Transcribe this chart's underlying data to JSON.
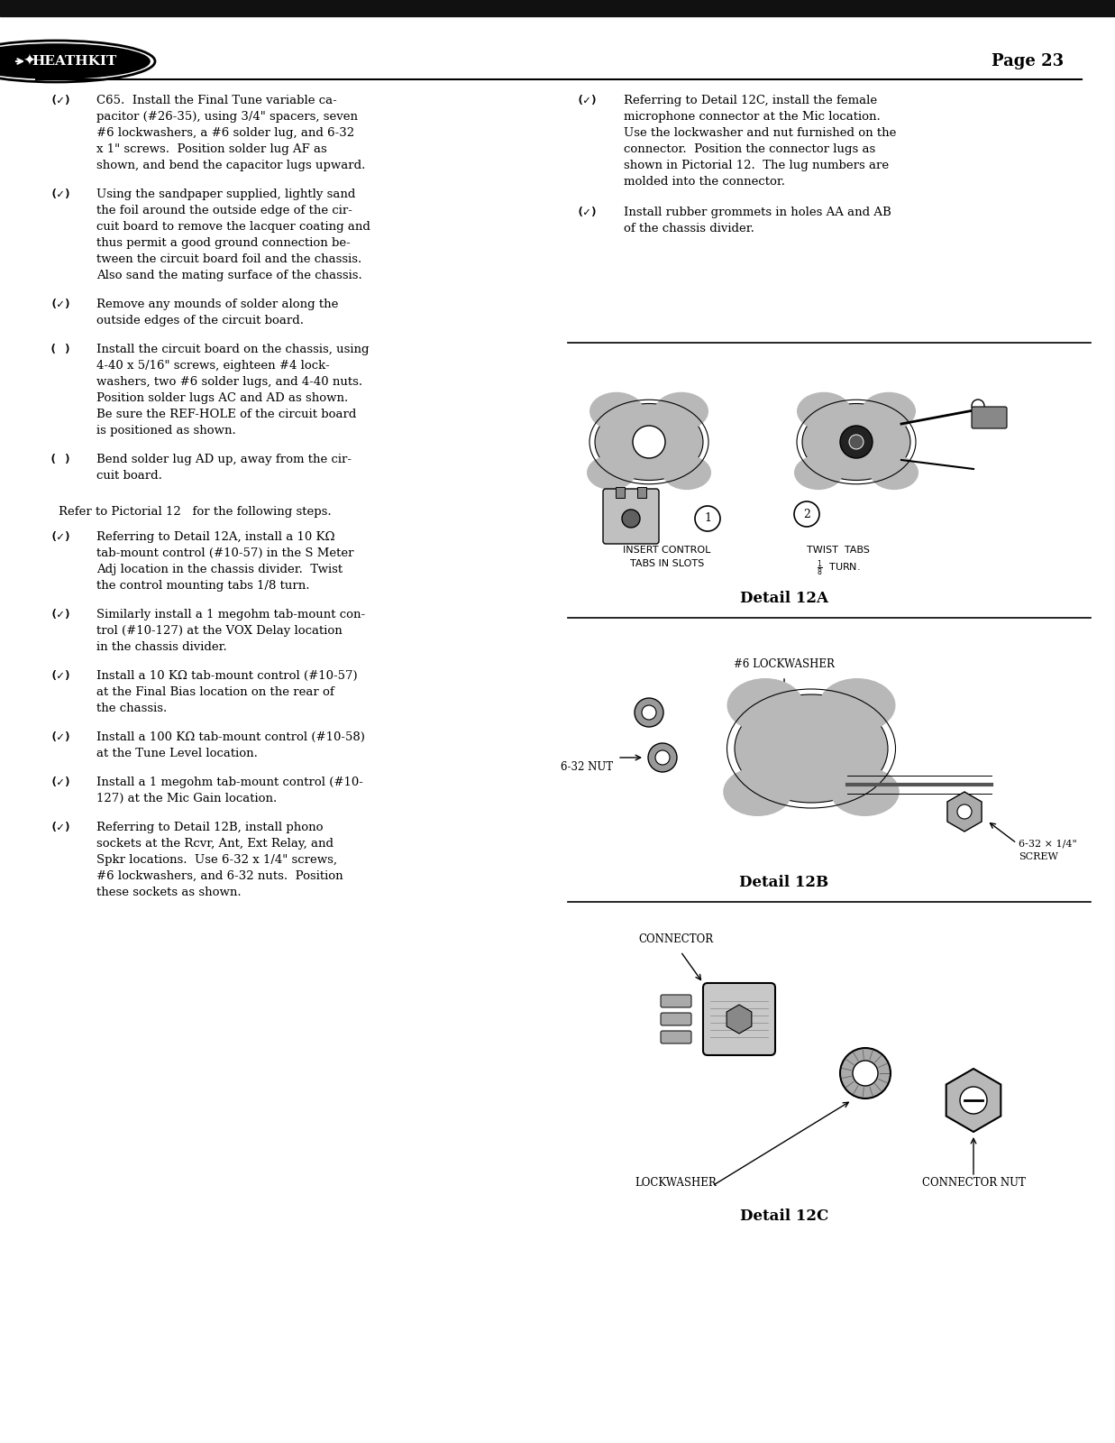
{
  "page_num": "Page 23",
  "bg_color": "#ffffff",
  "text_color": "#000000",
  "header_bar_color": "#111111",
  "logo_text": "HEATHKIT",
  "col1_items": [
    {
      "check": "(✓)",
      "text": "C65.  Install the Final Tune variable ca-\npacitor (#26-35), using 3/4\" spacers, seven\n#6 lockwashers, a #6 solder lug, and 6-32\nx 1\" screws.  Position solder lug AF as\nshown, and bend the capacitor lugs upward."
    },
    {
      "check": "(✓)",
      "text": "Using the sandpaper supplied, lightly sand\nthe foil around the outside edge of the cir-\ncuit board to remove the lacquer coating and\nthus permit a good ground connection be-\ntween the circuit board foil and the chassis.\nAlso sand the mating surface of the chassis."
    },
    {
      "check": "(✓)",
      "text": "Remove any mounds of solder along the\noutside edges of the circuit board."
    },
    {
      "check": "( )",
      "text": "Install the circuit board on the chassis, using\n4-40 x 5/16\" screws, eighteen #4 lock-\nwashers, two #6 solder lugs, and 4-40 nuts.\nPosition solder lugs AC and AD as shown.\nBe sure the REF-HOLE of the circuit board\nis positioned as shown."
    },
    {
      "check": "( )",
      "text": "Bend solder lug AD up, away from the cir-\ncuit board."
    }
  ],
  "refer_text": "Refer to Pictorial 12   for the following steps.",
  "col1_items2": [
    {
      "check": "(✓)",
      "text": "Referring to Detail 12A, install a 10 KΩ\ntab-mount control (#10-57) in the S Meter\nAdj location in the chassis divider.  Twist\nthe control mounting tabs 1/8 turn."
    },
    {
      "check": "(✓)",
      "text": "Similarly install a 1 megohm tab-mount con-\ntrol (#10-127) at the VOX Delay location\nin the chassis divider."
    },
    {
      "check": "(✓)",
      "text": "Install a 10 KΩ tab-mount control (#10-57)\nat the Final Bias location on the rear of\nthe chassis."
    },
    {
      "check": "(✓)",
      "text": "Install a 100 KΩ tab-mount control (#10-58)\nat the Tune Level location."
    },
    {
      "check": "(✓)",
      "text": "Install a 1 megohm tab-mount control (#10-\n127) at the Mic Gain location."
    },
    {
      "check": "(✓)",
      "text": "Referring to Detail 12B, install phono\nsockets at the Rcvr, Ant, Ext Relay, and\nSpkr locations.  Use 6-32 x 1/4\" screws,\n#6 lockwashers, and 6-32 nuts.  Position\nthese sockets as shown."
    }
  ],
  "col2_items": [
    {
      "check": "(✓)",
      "text": "Referring to Detail 12C, install the female\nmicrophone connector at the Mic location.\nUse the lockwasher and nut furnished on the\nconnector.  Position the connector lugs as\nshown in Pictorial 12.  The lug numbers are\nmolded into the connector."
    },
    {
      "check": "(✓)",
      "text": "Install rubber grommets in holes AA and AB\nof the chassis divider."
    }
  ],
  "detail_12a_caption": "Detail 12A",
  "detail_12b_caption": "Detail 12B",
  "detail_12c_caption": "Detail 12C"
}
